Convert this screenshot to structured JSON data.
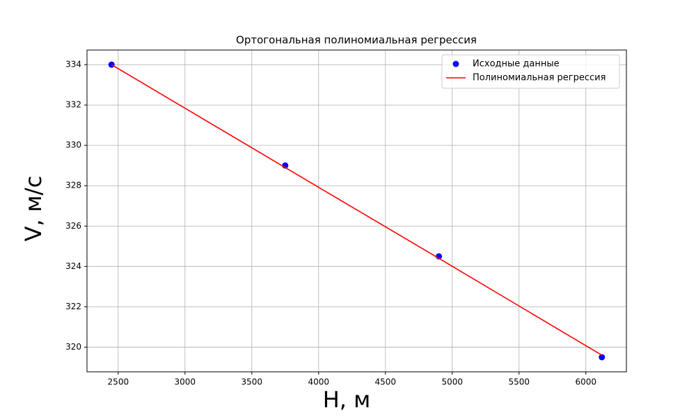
{
  "chart_data": {
    "type": "scatter",
    "title": "Ортогональная полиномиальная регрессия",
    "x_label": "H, м",
    "y_label": "V, м/с",
    "series": [
      {
        "name": "Исходные данные",
        "color": "#0000ff",
        "style": "markers",
        "x": [
          2450,
          3750,
          4900,
          6120
        ],
        "values": [
          334,
          329,
          324.5,
          319.5
        ]
      },
      {
        "name": "Полиномиальная регрессия",
        "color": "#ff0000",
        "style": "line",
        "x": [
          2450,
          3750,
          4900,
          6120
        ],
        "values": [
          334.0,
          328.9,
          324.4,
          319.6
        ]
      }
    ],
    "xlim": [
      2266.5,
      6303.5
    ],
    "xticks": [
      2500,
      3000,
      3500,
      4000,
      4500,
      5000,
      5500,
      6000
    ],
    "ylim": [
      318.775,
      334.725
    ],
    "yticks": [
      320,
      322,
      324,
      326,
      328,
      330,
      332,
      334
    ],
    "grid": true,
    "legend": "upper right"
  }
}
